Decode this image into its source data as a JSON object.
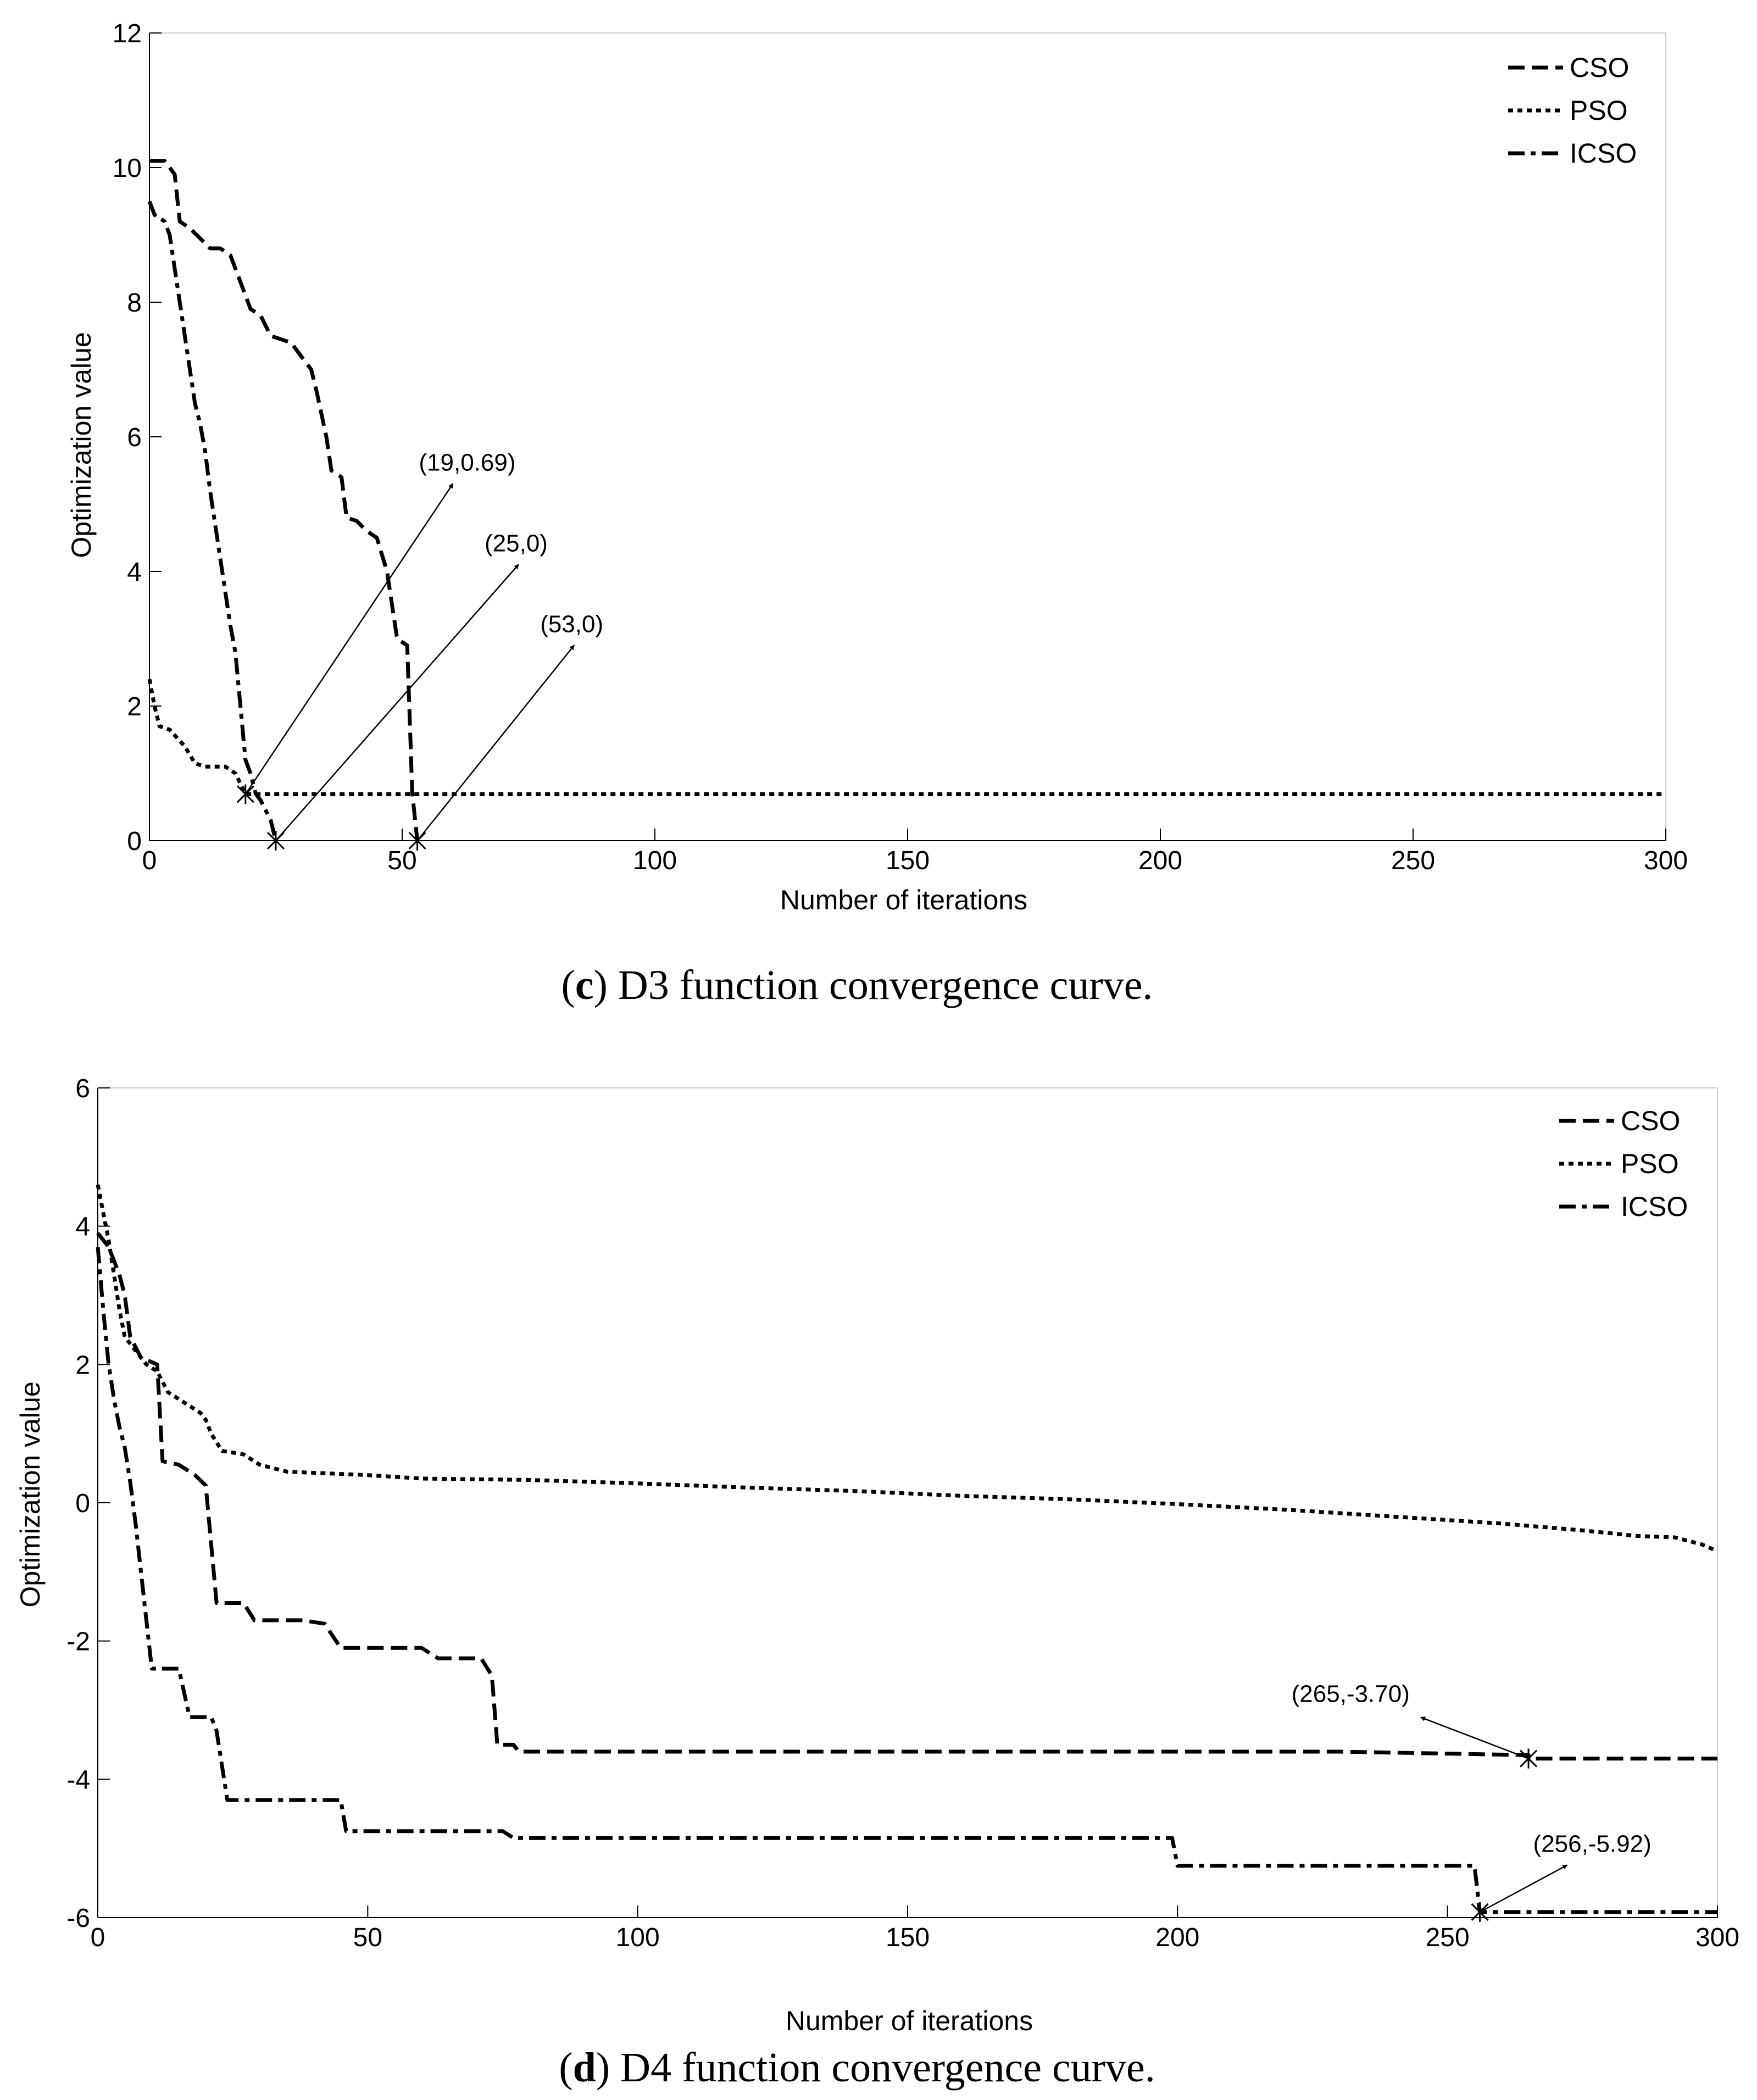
{
  "chart_data": [
    {
      "type": "line",
      "id": "d3",
      "caption": {
        "open": "(",
        "letter": "c",
        "text": ") D3 function convergence curve."
      },
      "xlabel": "Number of iterations",
      "ylabel": "Optimization value",
      "xlim": [
        0,
        300
      ],
      "ylim": [
        0,
        12
      ],
      "xticks": [
        0,
        50,
        100,
        150,
        200,
        250,
        300
      ],
      "yticks": [
        0,
        2,
        4,
        6,
        8,
        10,
        12
      ],
      "grid": false,
      "legend": {
        "position": "top-right",
        "entries": [
          "CSO",
          "PSO",
          "ICSO"
        ]
      },
      "series": [
        {
          "name": "CSO",
          "style": "dashed",
          "points": [
            [
              0,
              10.1
            ],
            [
              3,
              10.1
            ],
            [
              5,
              9.9
            ],
            [
              6,
              9.2
            ],
            [
              8,
              9.1
            ],
            [
              10,
              8.95
            ],
            [
              12,
              8.8
            ],
            [
              14,
              8.8
            ],
            [
              16,
              8.7
            ],
            [
              18,
              8.3
            ],
            [
              20,
              7.9
            ],
            [
              22,
              7.8
            ],
            [
              24,
              7.5
            ],
            [
              26,
              7.45
            ],
            [
              28,
              7.4
            ],
            [
              30,
              7.2
            ],
            [
              32,
              7.0
            ],
            [
              33,
              6.7
            ],
            [
              35,
              6.0
            ],
            [
              36,
              5.5
            ],
            [
              38,
              5.4
            ],
            [
              39,
              4.8
            ],
            [
              41,
              4.75
            ],
            [
              43,
              4.6
            ],
            [
              45,
              4.5
            ],
            [
              47,
              4.0
            ],
            [
              49,
              3.0
            ],
            [
              51,
              2.9
            ],
            [
              52,
              0.7
            ],
            [
              53,
              0.0
            ]
          ]
        },
        {
          "name": "PSO",
          "style": "dotted",
          "points": [
            [
              0,
              2.4
            ],
            [
              1,
              2.0
            ],
            [
              2,
              1.7
            ],
            [
              4,
              1.65
            ],
            [
              7,
              1.4
            ],
            [
              9,
              1.15
            ],
            [
              11,
              1.1
            ],
            [
              15,
              1.1
            ],
            [
              17,
              1.0
            ],
            [
              19,
              0.69
            ],
            [
              300,
              0.69
            ]
          ]
        },
        {
          "name": "ICSO",
          "style": "dashdot",
          "points": [
            [
              0,
              9.5
            ],
            [
              1,
              9.3
            ],
            [
              3,
              9.2
            ],
            [
              4,
              9.0
            ],
            [
              5,
              8.5
            ],
            [
              6,
              8.0
            ],
            [
              7,
              7.5
            ],
            [
              8,
              7.0
            ],
            [
              9,
              6.5
            ],
            [
              10,
              6.2
            ],
            [
              11,
              5.8
            ],
            [
              12,
              5.2
            ],
            [
              13,
              4.7
            ],
            [
              14,
              4.2
            ],
            [
              15,
              3.7
            ],
            [
              16,
              3.2
            ],
            [
              17,
              2.8
            ],
            [
              18,
              2.0
            ],
            [
              19,
              1.2
            ],
            [
              20,
              1.0
            ],
            [
              21,
              0.7
            ],
            [
              22,
              0.6
            ],
            [
              24,
              0.3
            ],
            [
              25,
              0.0
            ]
          ]
        }
      ],
      "annotations": [
        {
          "label": "(19,0.69)",
          "x": 19,
          "y": 0.69,
          "text_x": 62,
          "text_y": 5.5
        },
        {
          "label": "(25,0)",
          "x": 25,
          "y": 0,
          "text_x": 75,
          "text_y": 4.3
        },
        {
          "label": "(53,0)",
          "x": 53,
          "y": 0,
          "text_x": 86,
          "text_y": 3.1
        }
      ]
    },
    {
      "type": "line",
      "id": "d4",
      "caption": {
        "open": "(",
        "letter": "d",
        "text": ") D4 function convergence curve."
      },
      "xlabel": "Number of iterations",
      "ylabel": "Optimization value",
      "xlim": [
        0,
        300
      ],
      "ylim": [
        -6,
        6
      ],
      "xticks": [
        0,
        50,
        100,
        150,
        200,
        250,
        300
      ],
      "yticks": [
        -6,
        -4,
        -2,
        0,
        2,
        4,
        6
      ],
      "grid": false,
      "legend": {
        "position": "top-right",
        "entries": [
          "CSO",
          "PSO",
          "ICSO"
        ]
      },
      "series": [
        {
          "name": "CSO",
          "style": "dashed",
          "points": [
            [
              0,
              3.9
            ],
            [
              2,
              3.7
            ],
            [
              4,
              3.3
            ],
            [
              5,
              3.0
            ],
            [
              6,
              2.4
            ],
            [
              8,
              2.1
            ],
            [
              11,
              2.0
            ],
            [
              12,
              0.6
            ],
            [
              15,
              0.55
            ],
            [
              18,
              0.4
            ],
            [
              20,
              0.25
            ],
            [
              22,
              -1.45
            ],
            [
              27,
              -1.45
            ],
            [
              29,
              -1.7
            ],
            [
              38,
              -1.7
            ],
            [
              42,
              -1.75
            ],
            [
              45,
              -2.1
            ],
            [
              60,
              -2.1
            ],
            [
              63,
              -2.25
            ],
            [
              71,
              -2.25
            ],
            [
              73,
              -2.5
            ],
            [
              74,
              -3.5
            ],
            [
              77,
              -3.5
            ],
            [
              78,
              -3.6
            ],
            [
              230,
              -3.6
            ],
            [
              265,
              -3.65
            ],
            [
              265,
              -3.7
            ],
            [
              300,
              -3.7
            ]
          ]
        },
        {
          "name": "PSO",
          "style": "dotted",
          "points": [
            [
              0,
              4.6
            ],
            [
              1,
              4.2
            ],
            [
              2,
              3.8
            ],
            [
              3,
              3.3
            ],
            [
              4,
              2.8
            ],
            [
              5,
              2.4
            ],
            [
              7,
              2.2
            ],
            [
              9,
              2.0
            ],
            [
              11,
              1.9
            ],
            [
              13,
              1.6
            ],
            [
              15,
              1.5
            ],
            [
              17,
              1.4
            ],
            [
              19,
              1.3
            ],
            [
              20,
              1.2
            ],
            [
              21,
              1.0
            ],
            [
              23,
              0.75
            ],
            [
              27,
              0.7
            ],
            [
              30,
              0.55
            ],
            [
              35,
              0.45
            ],
            [
              50,
              0.4
            ],
            [
              60,
              0.35
            ],
            [
              80,
              0.33
            ],
            [
              100,
              0.28
            ],
            [
              120,
              0.22
            ],
            [
              140,
              0.17
            ],
            [
              160,
              0.1
            ],
            [
              180,
              0.05
            ],
            [
              200,
              -0.02
            ],
            [
              220,
              -0.1
            ],
            [
              240,
              -0.2
            ],
            [
              260,
              -0.3
            ],
            [
              275,
              -0.4
            ],
            [
              285,
              -0.48
            ],
            [
              292,
              -0.5
            ],
            [
              297,
              -0.6
            ],
            [
              300,
              -0.7
            ]
          ]
        },
        {
          "name": "ICSO",
          "style": "dashdot",
          "points": [
            [
              0,
              3.7
            ],
            [
              1,
              2.8
            ],
            [
              2,
              2.0
            ],
            [
              3,
              1.5
            ],
            [
              4,
              1.1
            ],
            [
              5,
              0.8
            ],
            [
              6,
              0.3
            ],
            [
              7,
              -0.3
            ],
            [
              8,
              -1.0
            ],
            [
              9,
              -1.7
            ],
            [
              10,
              -2.4
            ],
            [
              15,
              -2.4
            ],
            [
              17,
              -3.1
            ],
            [
              21,
              -3.1
            ],
            [
              22,
              -3.3
            ],
            [
              24,
              -4.3
            ],
            [
              45,
              -4.3
            ],
            [
              46,
              -4.75
            ],
            [
              75,
              -4.75
            ],
            [
              77,
              -4.85
            ],
            [
              199,
              -4.85
            ],
            [
              200,
              -5.25
            ],
            [
              255,
              -5.25
            ],
            [
              256,
              -5.92
            ],
            [
              300,
              -5.92
            ]
          ]
        }
      ],
      "annotations": [
        {
          "label": "(265,-3.70)",
          "x": 265,
          "y": -3.7,
          "text_x": 243,
          "text_y": -2.88
        },
        {
          "label": "(256,-5.92)",
          "x": 256,
          "y": -5.92,
          "text_x": 274,
          "text_y": -5.05
        }
      ]
    }
  ]
}
